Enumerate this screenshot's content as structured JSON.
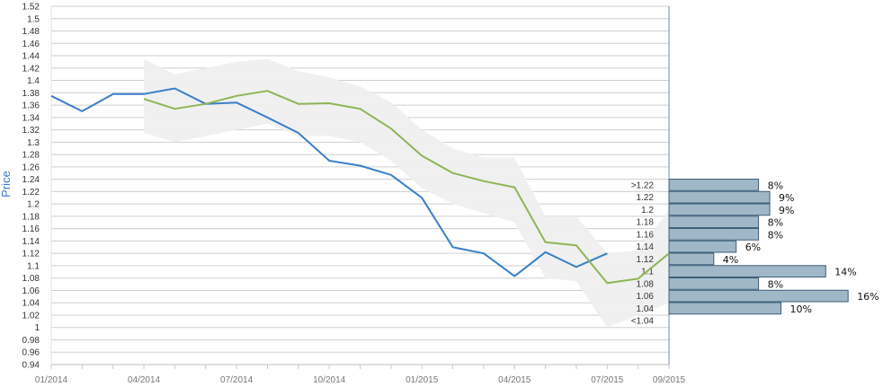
{
  "chart_data": {
    "type": "line",
    "ylabel": "Price",
    "xlabel": "",
    "ylim": [
      0.94,
      1.52
    ],
    "y_ticks": [
      "0.94",
      "0.96",
      "0.98",
      "1",
      "1.02",
      "1.04",
      "1.06",
      "1.08",
      "1.1",
      "1.12",
      "1.14",
      "1.16",
      "1.18",
      "1.2",
      "1.22",
      "1.24",
      "1.26",
      "1.28",
      "1.3",
      "1.32",
      "1.34",
      "1.36",
      "1.38",
      "1.4",
      "1.42",
      "1.44",
      "1.46",
      "1.48",
      "1.5",
      "1.52"
    ],
    "x_ticks": [
      "01/2014",
      "04/2014",
      "07/2014",
      "10/2014",
      "01/2015",
      "04/2015",
      "07/2015",
      "09/2015"
    ],
    "series": [
      {
        "color": "#3a7fc8",
        "x": [
          "2014-01",
          "2014-02",
          "2014-03",
          "2014-04",
          "2014-05",
          "2014-06",
          "2014-07",
          "2014-08",
          "2014-09",
          "2014-10",
          "2014-11",
          "2014-12",
          "2015-01",
          "2015-02",
          "2015-03",
          "2015-04",
          "2015-05",
          "2015-06",
          "2015-07"
        ],
        "values": [
          1.375,
          1.35,
          1.378,
          1.378,
          1.387,
          1.362,
          1.364,
          1.34,
          1.315,
          1.27,
          1.262,
          1.247,
          1.21,
          1.13,
          1.12,
          1.083,
          1.122,
          1.098,
          1.12
        ]
      },
      {
        "color": "#8db554",
        "x": [
          "2014-04",
          "2014-05",
          "2014-06",
          "2014-07",
          "2014-08",
          "2014-09",
          "2014-10",
          "2014-11",
          "2014-12",
          "2015-01",
          "2015-02",
          "2015-03",
          "2015-04",
          "2015-05",
          "2015-06",
          "2015-07",
          "2015-08",
          "2015-09"
        ],
        "values": [
          1.37,
          1.354,
          1.362,
          1.375,
          1.383,
          1.362,
          1.363,
          1.354,
          1.322,
          1.278,
          1.25,
          1.237,
          1.227,
          1.138,
          1.133,
          1.072,
          1.079,
          1.12
        ]
      }
    ],
    "band": {
      "color": "#efefef",
      "x": [
        "2014-04",
        "2014-05",
        "2014-06",
        "2014-07",
        "2014-08",
        "2014-09",
        "2014-10",
        "2014-11",
        "2014-12",
        "2015-01",
        "2015-02",
        "2015-03",
        "2015-04",
        "2015-05",
        "2015-06",
        "2015-07",
        "2015-08",
        "2015-09"
      ],
      "upper": [
        1.435,
        1.41,
        1.42,
        1.43,
        1.435,
        1.415,
        1.405,
        1.39,
        1.365,
        1.32,
        1.29,
        1.275,
        1.275,
        1.18,
        1.18,
        1.12,
        1.125,
        1.19
      ],
      "lower": [
        1.315,
        1.3,
        1.31,
        1.32,
        1.33,
        1.31,
        1.31,
        1.3,
        1.27,
        1.225,
        1.2,
        1.185,
        1.17,
        1.08,
        1.075,
        1.0,
        1.02,
        1.04
      ]
    },
    "distribution": {
      "color": "#9fb7c6",
      "bins": [
        {
          "label": ">1.22",
          "percent": "8%",
          "value": 8
        },
        {
          "label": "1.22",
          "percent": "9%",
          "value": 9
        },
        {
          "label": "1.2",
          "percent": "9%",
          "value": 9
        },
        {
          "label": "1.18",
          "percent": "8%",
          "value": 8
        },
        {
          "label": "1.16",
          "percent": "8%",
          "value": 8
        },
        {
          "label": "1.14",
          "percent": "6%",
          "value": 6
        },
        {
          "label": "1.12",
          "percent": "4%",
          "value": 4
        },
        {
          "label": "1.1",
          "percent": "14%",
          "value": 14
        },
        {
          "label": "1.08",
          "percent": "8%",
          "value": 8
        },
        {
          "label": "1.06",
          "percent": "16%",
          "value": 16
        },
        {
          "label": "1.04",
          "percent": "10%",
          "value": 10
        },
        {
          "label": "<1.04",
          "percent": "",
          "value": 0
        }
      ]
    },
    "grid": true
  }
}
